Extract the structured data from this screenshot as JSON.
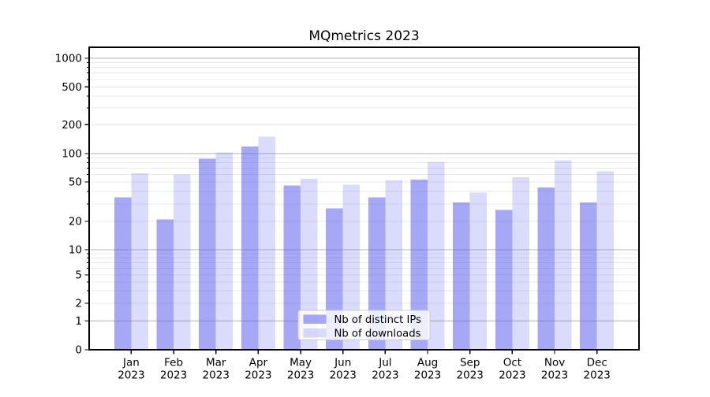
{
  "chart_data": {
    "type": "bar",
    "title": "MQmetrics 2023",
    "categories": [
      "Jan",
      "Feb",
      "Mar",
      "Apr",
      "May",
      "Jun",
      "Jul",
      "Aug",
      "Sep",
      "Oct",
      "Nov",
      "Dec"
    ],
    "x_tick_second_line": "2023",
    "series": [
      {
        "name": "Nb of distinct IPs",
        "values": [
          35,
          21,
          88,
          118,
          46,
          27,
          35,
          53,
          31,
          26,
          44,
          31
        ],
        "color": "rgba(91,95,237,0.54)"
      },
      {
        "name": "Nb of downloads",
        "values": [
          62,
          60,
          103,
          150,
          54,
          47,
          52,
          82,
          39,
          56,
          85,
          65
        ],
        "color": "rgba(91,95,237,0.22)"
      }
    ],
    "y_ticks": [
      0,
      1,
      2,
      5,
      10,
      20,
      50,
      100,
      200,
      500,
      1000
    ],
    "yscale": "symlog",
    "ylim": [
      0,
      1600
    ],
    "xlabel": "",
    "ylabel": "",
    "grid": "on",
    "legend_position": "lower center",
    "colors": {
      "bar_base": "#5b5fed",
      "grid_major": "#b2b2b2",
      "grid_minor": "#e9e9e9",
      "axis": "#000000",
      "background": "#ffffff"
    }
  }
}
